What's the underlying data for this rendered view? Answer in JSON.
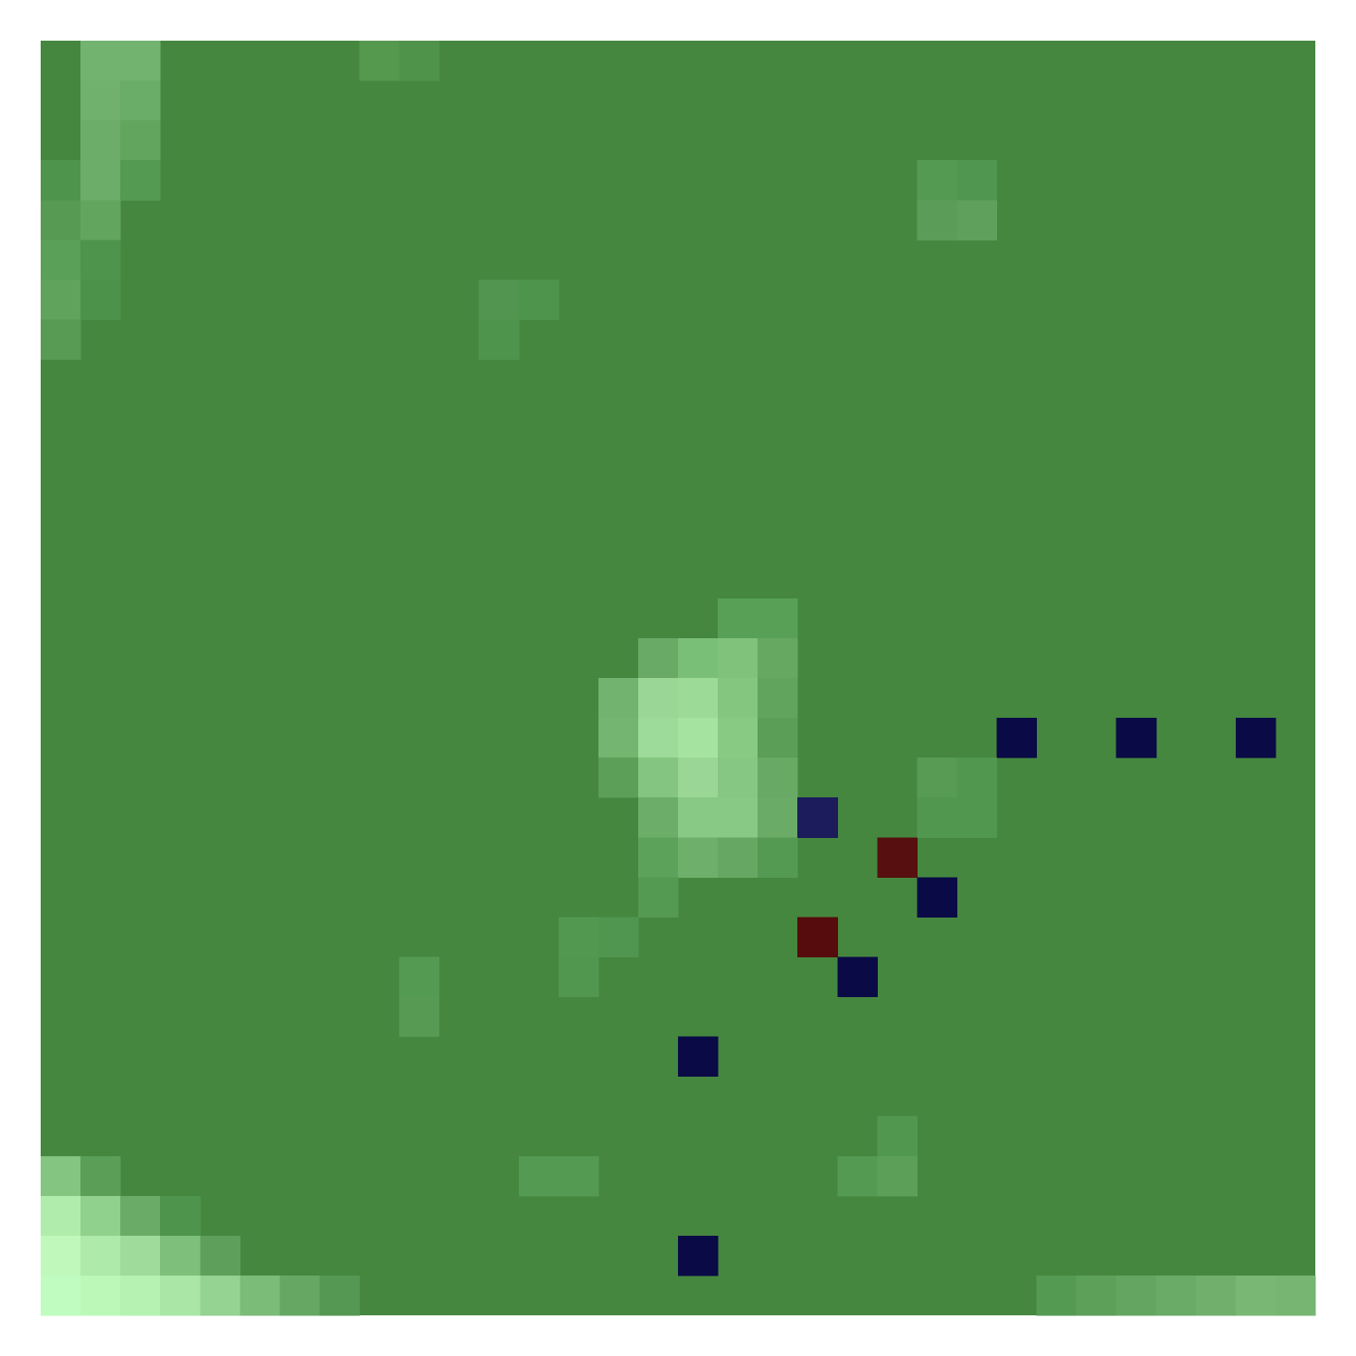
{
  "grid": {
    "rows": 32,
    "cols": 32,
    "base": "#45873f",
    "cells": [
      {
        "row": 0,
        "col": 1,
        "color": "#72b46f"
      },
      {
        "row": 0,
        "col": 2,
        "color": "#72b46f"
      },
      {
        "row": 0,
        "col": 8,
        "color": "#55994f"
      },
      {
        "row": 0,
        "col": 9,
        "color": "#4f934b"
      },
      {
        "row": 1,
        "col": 1,
        "color": "#70b26d"
      },
      {
        "row": 1,
        "col": 2,
        "color": "#6aad68"
      },
      {
        "row": 2,
        "col": 1,
        "color": "#6cae69"
      },
      {
        "row": 2,
        "col": 2,
        "color": "#62a55f"
      },
      {
        "row": 3,
        "col": 0,
        "color": "#4f944c"
      },
      {
        "row": 3,
        "col": 1,
        "color": "#6cae69"
      },
      {
        "row": 3,
        "col": 2,
        "color": "#559a52"
      },
      {
        "row": 3,
        "col": 22,
        "color": "#559a53"
      },
      {
        "row": 3,
        "col": 23,
        "color": "#509550"
      },
      {
        "row": 4,
        "col": 0,
        "color": "#569a53"
      },
      {
        "row": 4,
        "col": 1,
        "color": "#62a55f"
      },
      {
        "row": 4,
        "col": 22,
        "color": "#5a9c58"
      },
      {
        "row": 4,
        "col": 23,
        "color": "#5fa15c"
      },
      {
        "row": 5,
        "col": 0,
        "color": "#5ba058"
      },
      {
        "row": 5,
        "col": 1,
        "color": "#4f944c"
      },
      {
        "row": 6,
        "col": 0,
        "color": "#5fa35c"
      },
      {
        "row": 6,
        "col": 1,
        "color": "#4d924a"
      },
      {
        "row": 6,
        "col": 11,
        "color": "#519550"
      },
      {
        "row": 6,
        "col": 12,
        "color": "#4f944c"
      },
      {
        "row": 7,
        "col": 0,
        "color": "#579b54"
      },
      {
        "row": 7,
        "col": 11,
        "color": "#4f944c"
      },
      {
        "row": 14,
        "col": 17,
        "color": "#58a056"
      },
      {
        "row": 14,
        "col": 18,
        "color": "#58a056"
      },
      {
        "row": 15,
        "col": 15,
        "color": "#68aa66"
      },
      {
        "row": 15,
        "col": 16,
        "color": "#7abf78"
      },
      {
        "row": 15,
        "col": 17,
        "color": "#80c27c"
      },
      {
        "row": 15,
        "col": 18,
        "color": "#66a862"
      },
      {
        "row": 16,
        "col": 14,
        "color": "#72b36f"
      },
      {
        "row": 16,
        "col": 15,
        "color": "#9ad797"
      },
      {
        "row": 16,
        "col": 16,
        "color": "#9cda98"
      },
      {
        "row": 16,
        "col": 17,
        "color": "#84c680"
      },
      {
        "row": 16,
        "col": 18,
        "color": "#60a45d"
      },
      {
        "row": 17,
        "col": 14,
        "color": "#74b571"
      },
      {
        "row": 17,
        "col": 15,
        "color": "#9cdb99"
      },
      {
        "row": 17,
        "col": 16,
        "color": "#a4e3a0"
      },
      {
        "row": 17,
        "col": 17,
        "color": "#88ca84"
      },
      {
        "row": 17,
        "col": 18,
        "color": "#5a9e57"
      },
      {
        "row": 17,
        "col": 24,
        "color": "#0a0a46"
      },
      {
        "row": 17,
        "col": 27,
        "color": "#0a0a46"
      },
      {
        "row": 17,
        "col": 30,
        "color": "#0a0a46"
      },
      {
        "row": 18,
        "col": 14,
        "color": "#5c9f59"
      },
      {
        "row": 18,
        "col": 15,
        "color": "#84c681"
      },
      {
        "row": 18,
        "col": 16,
        "color": "#9ad797"
      },
      {
        "row": 18,
        "col": 17,
        "color": "#86c883"
      },
      {
        "row": 18,
        "col": 18,
        "color": "#68aa65"
      },
      {
        "row": 18,
        "col": 22,
        "color": "#579b54"
      },
      {
        "row": 18,
        "col": 23,
        "color": "#529750"
      },
      {
        "row": 19,
        "col": 15,
        "color": "#6cae69"
      },
      {
        "row": 19,
        "col": 16,
        "color": "#88c985"
      },
      {
        "row": 19,
        "col": 17,
        "color": "#88c985"
      },
      {
        "row": 19,
        "col": 18,
        "color": "#6aab67"
      },
      {
        "row": 19,
        "col": 19,
        "color": "#1c1c5c"
      },
      {
        "row": 19,
        "col": 22,
        "color": "#529750"
      },
      {
        "row": 19,
        "col": 23,
        "color": "#529750"
      },
      {
        "row": 20,
        "col": 15,
        "color": "#5da25a"
      },
      {
        "row": 20,
        "col": 16,
        "color": "#6eaf6b"
      },
      {
        "row": 20,
        "col": 17,
        "color": "#66a863"
      },
      {
        "row": 20,
        "col": 18,
        "color": "#559a53"
      },
      {
        "row": 20,
        "col": 21,
        "color": "#570f0f"
      },
      {
        "row": 21,
        "col": 15,
        "color": "#559a52"
      },
      {
        "row": 21,
        "col": 22,
        "color": "#0a0a46"
      },
      {
        "row": 22,
        "col": 13,
        "color": "#539850"
      },
      {
        "row": 22,
        "col": 14,
        "color": "#509550"
      },
      {
        "row": 22,
        "col": 19,
        "color": "#560c0c"
      },
      {
        "row": 23,
        "col": 9,
        "color": "#559a53"
      },
      {
        "row": 23,
        "col": 13,
        "color": "#529750"
      },
      {
        "row": 23,
        "col": 20,
        "color": "#0a0a46"
      },
      {
        "row": 24,
        "col": 9,
        "color": "#569a53"
      },
      {
        "row": 25,
        "col": 16,
        "color": "#0a0a46"
      },
      {
        "row": 27,
        "col": 21,
        "color": "#529750"
      },
      {
        "row": 28,
        "col": 0,
        "color": "#84c581"
      },
      {
        "row": 28,
        "col": 1,
        "color": "#5a9e57"
      },
      {
        "row": 28,
        "col": 12,
        "color": "#559a52"
      },
      {
        "row": 28,
        "col": 13,
        "color": "#559a52"
      },
      {
        "row": 28,
        "col": 20,
        "color": "#559a52"
      },
      {
        "row": 28,
        "col": 21,
        "color": "#5c9f59"
      },
      {
        "row": 29,
        "col": 0,
        "color": "#b0ecac"
      },
      {
        "row": 29,
        "col": 1,
        "color": "#90d18d"
      },
      {
        "row": 29,
        "col": 2,
        "color": "#6aac67"
      },
      {
        "row": 29,
        "col": 3,
        "color": "#4f944c"
      },
      {
        "row": 30,
        "col": 0,
        "color": "#c0f8bc"
      },
      {
        "row": 30,
        "col": 1,
        "color": "#aeeaaa"
      },
      {
        "row": 30,
        "col": 2,
        "color": "#9fdc9b"
      },
      {
        "row": 30,
        "col": 3,
        "color": "#7ebf7b"
      },
      {
        "row": 30,
        "col": 4,
        "color": "#5e9f5b"
      },
      {
        "row": 30,
        "col": 16,
        "color": "#0a0a46"
      },
      {
        "row": 31,
        "col": 0,
        "color": "#c0fcbf"
      },
      {
        "row": 31,
        "col": 1,
        "color": "#bcf8b8"
      },
      {
        "row": 31,
        "col": 2,
        "color": "#b6f2b2"
      },
      {
        "row": 31,
        "col": 3,
        "color": "#aae6a6"
      },
      {
        "row": 31,
        "col": 4,
        "color": "#94d391"
      },
      {
        "row": 31,
        "col": 5,
        "color": "#7cbc79"
      },
      {
        "row": 31,
        "col": 6,
        "color": "#66a763"
      },
      {
        "row": 31,
        "col": 7,
        "color": "#559853"
      },
      {
        "row": 31,
        "col": 25,
        "color": "#559a52"
      },
      {
        "row": 31,
        "col": 26,
        "color": "#5da05a"
      },
      {
        "row": 31,
        "col": 27,
        "color": "#64a661"
      },
      {
        "row": 31,
        "col": 28,
        "color": "#6aab67"
      },
      {
        "row": 31,
        "col": 29,
        "color": "#70b06c"
      },
      {
        "row": 31,
        "col": 30,
        "color": "#78b874"
      },
      {
        "row": 31,
        "col": 31,
        "color": "#76b672"
      }
    ]
  }
}
